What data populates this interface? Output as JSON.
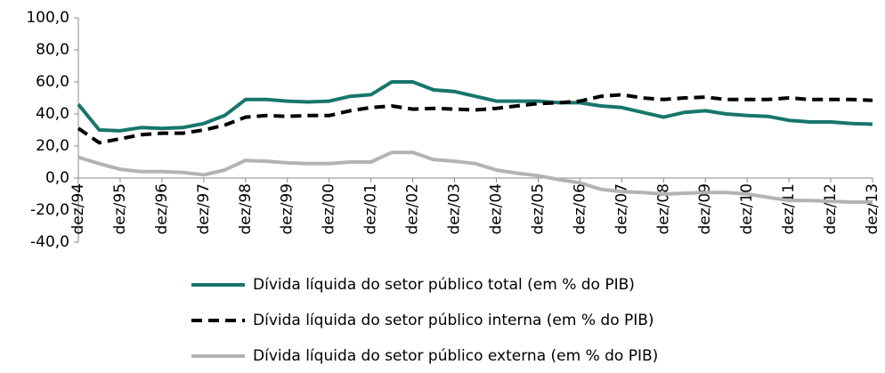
{
  "chart_data": {
    "type": "line",
    "categories": [
      "dez/94",
      null,
      "dez/95",
      null,
      "dez/96",
      null,
      "dez/97",
      null,
      "dez/98",
      null,
      "dez/99",
      null,
      "dez/00",
      null,
      "dez/01",
      null,
      "dez/02",
      null,
      "dez/03",
      null,
      "dez/04",
      null,
      "dez/05",
      null,
      "dez/06",
      null,
      "dez/07",
      null,
      "dez/08",
      null,
      "dez/09",
      null,
      "dez/10",
      null,
      "dez/11",
      null,
      "dez/12",
      null,
      "dez/13"
    ],
    "series": [
      {
        "name": "Dívida líquida do setor público total (em % do PIB)",
        "color": "#17766b",
        "style": "solid",
        "values": [
          46,
          30,
          29.5,
          31.5,
          31,
          31.5,
          34,
          39,
          49,
          49,
          48,
          47.5,
          48,
          51,
          52,
          60,
          60,
          55,
          54,
          51,
          48,
          48,
          48,
          47,
          47,
          45,
          44,
          41,
          38,
          41,
          42,
          40,
          39,
          38.5,
          36,
          35,
          35,
          34,
          33.6
        ]
      },
      {
        "name": "Dívida líquida do setor público interna (em % do PIB)",
        "color": "#000000",
        "style": "dashed",
        "values": [
          31,
          22,
          24.5,
          27,
          28,
          28,
          30,
          33,
          38,
          39,
          38.5,
          39,
          39,
          42,
          44,
          45,
          43,
          43.5,
          43,
          42.5,
          43.5,
          45,
          46.5,
          47,
          48,
          51,
          52,
          50,
          49,
          50,
          50.5,
          49,
          49,
          49,
          50,
          49,
          49,
          49,
          48.5
        ]
      },
      {
        "name": "Dívida líquida do setor público externa (em % do PIB)",
        "color": "#b3b3b3",
        "style": "solid",
        "values": [
          13,
          9,
          5.5,
          4,
          4,
          3.5,
          2,
          5,
          11,
          10.5,
          9.5,
          9,
          9,
          10,
          10,
          16,
          16,
          11.5,
          10.5,
          9,
          5,
          3,
          1.5,
          -1,
          -3,
          -7,
          -8.5,
          -9,
          -10,
          -9.5,
          -9,
          -9,
          -10,
          -12,
          -14,
          -14,
          -14.5,
          -15,
          -15
        ]
      }
    ],
    "ylim": [
      -40,
      100
    ],
    "yticks": [
      {
        "value": -40,
        "label": "-40,0"
      },
      {
        "value": -20,
        "label": "-20,0"
      },
      {
        "value": 0,
        "label": "0,0"
      },
      {
        "value": 20,
        "label": "20,0"
      },
      {
        "value": 40,
        "label": "40,0"
      },
      {
        "value": 60,
        "label": "60,0"
      },
      {
        "value": 80,
        "label": "80,0"
      },
      {
        "value": 100,
        "label": "100,0"
      }
    ],
    "legend": "bottom"
  }
}
